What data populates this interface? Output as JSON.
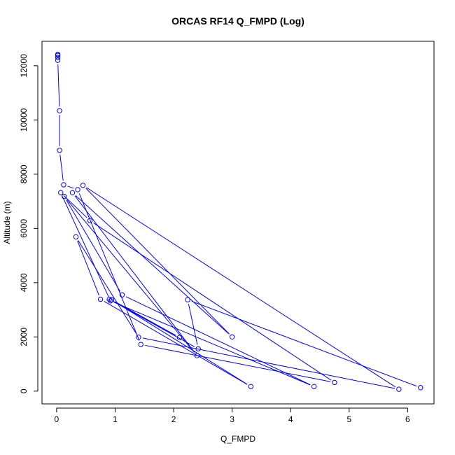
{
  "chart_data": {
    "type": "line",
    "title": "ORCAS RF14 Q_FMPD (Log)",
    "xlabel": "Q_FMPD",
    "ylabel": "Altitude (m)",
    "xlim": [
      -0.25,
      6.45
    ],
    "ylim": [
      -470,
      12900
    ],
    "xticks": [
      0,
      1,
      2,
      3,
      4,
      5,
      6
    ],
    "yticks": [
      0,
      2000,
      4000,
      6000,
      8000,
      10000,
      12000
    ],
    "grid": false,
    "legend": "none",
    "marker": "open-circle",
    "series": [
      {
        "color": "#0000ff",
        "points": [
          {
            "x": 0.02,
            "y": 12420
          },
          {
            "x": 0.02,
            "y": 12380
          },
          {
            "x": 0.02,
            "y": 12300
          },
          {
            "x": 0.02,
            "y": 12200
          },
          {
            "x": 0.05,
            "y": 10340
          },
          {
            "x": 0.05,
            "y": 8880
          },
          {
            "x": 0.12,
            "y": 7610
          },
          {
            "x": 0.36,
            "y": 7430
          },
          {
            "x": 1.44,
            "y": 1720
          },
          {
            "x": 4.75,
            "y": 320
          },
          {
            "x": 0.57,
            "y": 6290
          },
          {
            "x": 0.07,
            "y": 7320
          },
          {
            "x": 0.92,
            "y": 3330
          },
          {
            "x": 4.4,
            "y": 170
          },
          {
            "x": 1.12,
            "y": 3550
          },
          {
            "x": 0.13,
            "y": 7180
          },
          {
            "x": 2.4,
            "y": 1310
          },
          {
            "x": 0.27,
            "y": 7320
          },
          {
            "x": 3.0,
            "y": 2000
          },
          {
            "x": 0.45,
            "y": 7590
          },
          {
            "x": 5.85,
            "y": 70
          },
          {
            "x": 1.4,
            "y": 1990
          },
          {
            "x": 0.33,
            "y": 5690
          },
          {
            "x": 0.75,
            "y": 3390
          },
          {
            "x": 3.32,
            "y": 170
          },
          {
            "x": 0.94,
            "y": 3370
          },
          {
            "x": 2.1,
            "y": 1980
          },
          {
            "x": 0.9,
            "y": 3390
          },
          {
            "x": 2.42,
            "y": 1560
          },
          {
            "x": 2.24,
            "y": 3370
          },
          {
            "x": 6.22,
            "y": 130
          }
        ]
      }
    ]
  }
}
